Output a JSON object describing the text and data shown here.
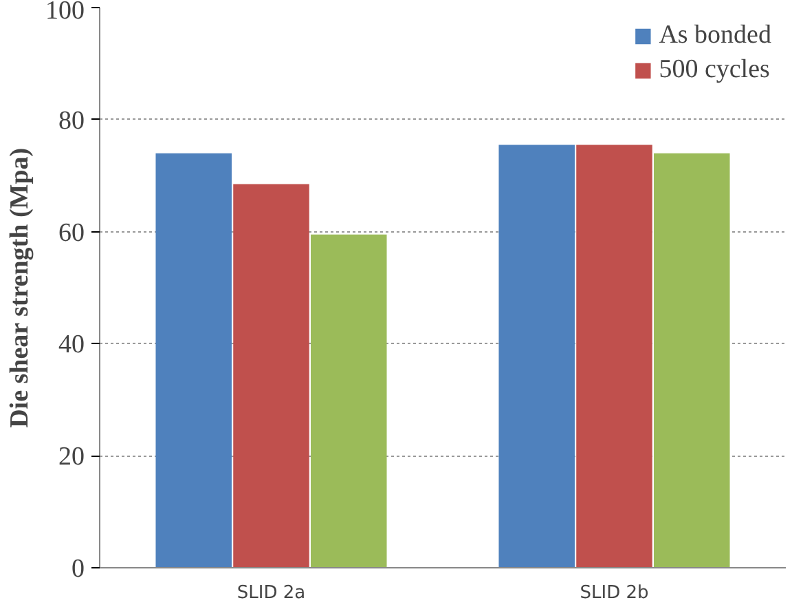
{
  "chart_data": {
    "type": "bar",
    "ylabel": "Die shear strength (Mpa)",
    "categories": [
      "SLID 2a",
      "SLID 2b"
    ],
    "series": [
      {
        "name": "As bonded",
        "color": "#4f81bd",
        "values": [
          74,
          75.5
        ]
      },
      {
        "name": "500 cycles",
        "color": "#c0504d",
        "values": [
          68.5,
          75.5
        ]
      },
      {
        "color": "#9bbb59",
        "values": [
          59.5,
          74
        ]
      }
    ],
    "ylim": [
      0,
      100
    ],
    "yticks": [
      0,
      20,
      40,
      60,
      80,
      100
    ],
    "grid": "y",
    "legend": "top right"
  }
}
